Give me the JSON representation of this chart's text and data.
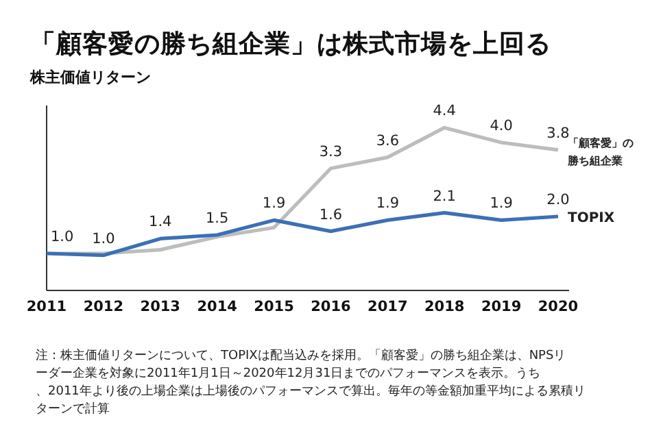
{
  "chart_data": {
    "type": "line",
    "title": "「顧客愛の勝ち組企業」は株式市場を上回る",
    "ylabel": "株主価値リターン",
    "categories": [
      "2011",
      "2012",
      "2013",
      "2014",
      "2015",
      "2016",
      "2017",
      "2018",
      "2019",
      "2020"
    ],
    "ylim": [
      0,
      5
    ],
    "tick_labels": "x",
    "legend": false,
    "marker": "none",
    "line_style": "solid",
    "series": [
      {
        "name": "「顧客愛」の勝ち組企業",
        "color": "#bdbdbd",
        "values": [
          1.0,
          1.0,
          1.1,
          1.45,
          1.7,
          3.3,
          3.6,
          4.4,
          4.0,
          3.8
        ],
        "value_labels": [
          null,
          null,
          null,
          null,
          null,
          "3.3",
          "3.6",
          "4.4",
          "4.0",
          "3.8"
        ]
      },
      {
        "name": "TOPIX",
        "color": "#3b70b6",
        "values": [
          1.0,
          0.95,
          1.4,
          1.5,
          1.9,
          1.6,
          1.9,
          2.1,
          1.9,
          2.0
        ],
        "value_labels": [
          "1.0",
          "1.0",
          "1.4",
          "1.5",
          "1.9",
          "1.6",
          "1.9",
          "2.1",
          "1.9",
          "2.0"
        ]
      }
    ],
    "annotations": [
      "注：株主価値リターンについて、TOPIXは配当込みを採用。「顧客愛」の勝ち組企業は、NPSリーダー企業を対象に2011年1月1日～2020年12月31日までのパフォーマンスを表示。うち、2011年より後の上場企業は上場後のパフォーマンスで算出。毎年の等金額加重平均による累積リターンで計算"
    ]
  }
}
